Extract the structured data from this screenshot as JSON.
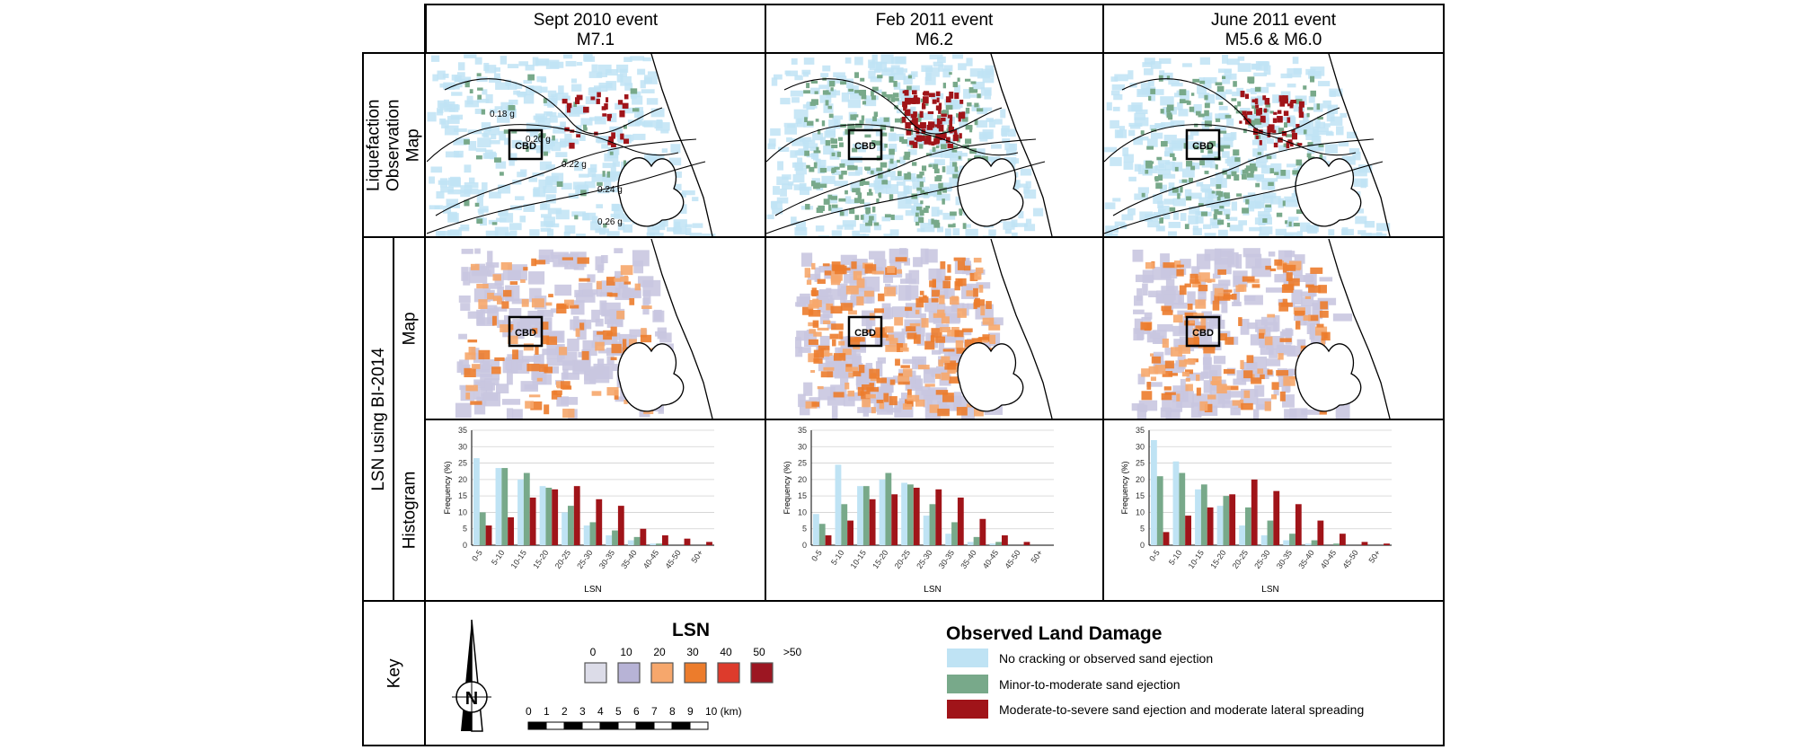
{
  "columns": [
    {
      "event": "Sept 2010 event",
      "magnitude": "M7.1"
    },
    {
      "event": "Feb 2011 event",
      "magnitude": "M6.2"
    },
    {
      "event": "June 2011 event",
      "magnitude": "M5.6 & M6.0"
    }
  ],
  "row_labels": {
    "liquefaction": "Liquefaction Observation Map",
    "lsn_group": "LSN using BI-2014",
    "map": "Map",
    "histogram": "Histogram",
    "key": "Key"
  },
  "map_label": "CBD",
  "contour_labels": [
    "0.18 g",
    "0.20 g",
    "0.22 g",
    "0.24 g",
    "0.26 g"
  ],
  "key": {
    "lsn_title": "LSN",
    "lsn_ticks": [
      "0",
      "10",
      "20",
      "30",
      "40",
      "50",
      ">50"
    ],
    "lsn_colors": [
      "#dcdce8",
      "#b7b3d6",
      "#f6a76c",
      "#ec7c2c",
      "#dd3b2c",
      "#9c1622"
    ],
    "scale_ticks": [
      "0",
      "1",
      "2",
      "3",
      "4",
      "5",
      "6",
      "7",
      "8",
      "9",
      "10 (km)"
    ],
    "north_label": "N",
    "damage_title": "Observed Land Damage",
    "damage_items": [
      {
        "label": "No cracking or observed sand ejection",
        "color": "#bfe3f4"
      },
      {
        "label": "Minor-to-moderate sand ejection",
        "color": "#78a98a"
      },
      {
        "label": "Moderate-to-severe sand ejection and moderate lateral spreading",
        "color": "#a01419"
      }
    ]
  },
  "chart_data": [
    {
      "type": "bar",
      "title": "Sept 2010 event M7.1",
      "xlabel": "LSN",
      "ylabel": "Frequency (%)",
      "ylim": [
        0,
        35
      ],
      "yticks": [
        0,
        5,
        10,
        15,
        20,
        25,
        30,
        35
      ],
      "categories": [
        "0-5",
        "5-10",
        "10-15",
        "15-20",
        "20-25",
        "25-30",
        "30-35",
        "35-40",
        "40-45",
        "45-50",
        "50+"
      ],
      "series": [
        {
          "color": "#bfe3f4",
          "values": [
            26.5,
            23.5,
            20,
            18,
            10,
            6,
            3,
            1.5,
            0.5,
            0,
            0
          ]
        },
        {
          "color": "#78a98a",
          "values": [
            10,
            23.5,
            22,
            17.5,
            12,
            7,
            4.5,
            2.5,
            0.5,
            0,
            0
          ]
        },
        {
          "color": "#a01419",
          "values": [
            6,
            8.5,
            14.5,
            17,
            18,
            14,
            12,
            5,
            3,
            2,
            1
          ]
        }
      ]
    },
    {
      "type": "bar",
      "title": "Feb 2011 event M6.2",
      "xlabel": "LSN",
      "ylabel": "Frequency (%)",
      "ylim": [
        0,
        35
      ],
      "yticks": [
        0,
        5,
        10,
        15,
        20,
        25,
        30,
        35
      ],
      "categories": [
        "0-5",
        "5-10",
        "10-15",
        "15-20",
        "20-25",
        "25-30",
        "30-35",
        "35-40",
        "40-45",
        "45-50",
        "50+"
      ],
      "series": [
        {
          "color": "#bfe3f4",
          "values": [
            9.5,
            24.5,
            18,
            20,
            19,
            9,
            3.5,
            1,
            0.5,
            0,
            0
          ]
        },
        {
          "color": "#78a98a",
          "values": [
            6.5,
            12.5,
            18,
            22,
            18.5,
            12.5,
            7,
            2.5,
            1,
            0,
            0
          ]
        },
        {
          "color": "#a01419",
          "values": [
            3,
            7.5,
            14,
            15.5,
            17.5,
            17,
            14.5,
            8,
            3,
            1,
            0
          ]
        }
      ]
    },
    {
      "type": "bar",
      "title": "June 2011 event M5.6 & M6.0",
      "xlabel": "LSN",
      "ylabel": "Frequency (%)",
      "ylim": [
        0,
        35
      ],
      "yticks": [
        0,
        5,
        10,
        15,
        20,
        25,
        30,
        35
      ],
      "categories": [
        "0-5",
        "5-10",
        "10-15",
        "15-20",
        "20-25",
        "25-30",
        "30-35",
        "35-40",
        "40-45",
        "45-50",
        "50+"
      ],
      "series": [
        {
          "color": "#bfe3f4",
          "values": [
            32,
            25.5,
            17,
            12,
            6,
            3,
            1.5,
            0.5,
            0,
            0,
            0
          ]
        },
        {
          "color": "#78a98a",
          "values": [
            21,
            22,
            18.5,
            15,
            11.5,
            7.5,
            3.5,
            1.5,
            0.5,
            0,
            0
          ]
        },
        {
          "color": "#a01419",
          "values": [
            4,
            9,
            11.5,
            15.5,
            20,
            16.5,
            12.5,
            7.5,
            3.5,
            1,
            0.5
          ]
        }
      ]
    }
  ]
}
